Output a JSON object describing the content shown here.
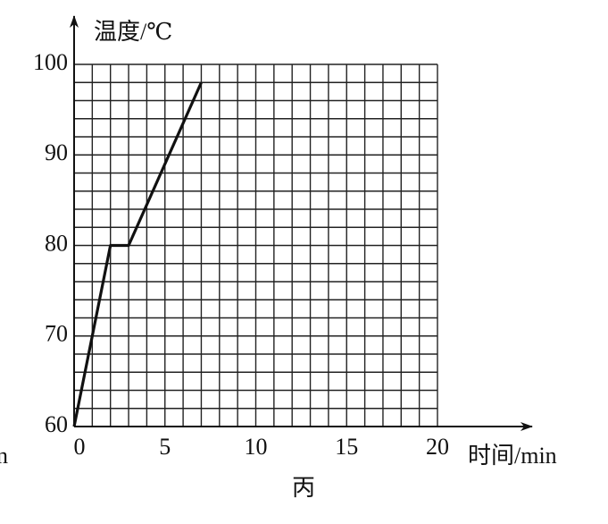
{
  "chart_data": {
    "type": "line",
    "y_label": "温度/℃",
    "x_label": "时间/min",
    "caption": "丙",
    "annotations": [
      "n"
    ],
    "x": [
      0,
      2,
      3,
      7
    ],
    "values": [
      60,
      80,
      80,
      98
    ],
    "color": "#111111",
    "xlim": [
      0,
      20
    ],
    "xticks": [
      0,
      5,
      10,
      15,
      20
    ],
    "ylim": [
      60,
      100
    ],
    "yticks": [
      60,
      70,
      80,
      90,
      100
    ],
    "grid": true,
    "x_gridlines": [
      0,
      1,
      2,
      3,
      4,
      5,
      6,
      7,
      8,
      9,
      10,
      11,
      12,
      13,
      14,
      15,
      16,
      17,
      18,
      19,
      20
    ],
    "y_gridlines": [
      60,
      62,
      64,
      66,
      68,
      70,
      72,
      74,
      76,
      78,
      80,
      82,
      84,
      86,
      88,
      90,
      92,
      94,
      96,
      98,
      100
    ]
  }
}
